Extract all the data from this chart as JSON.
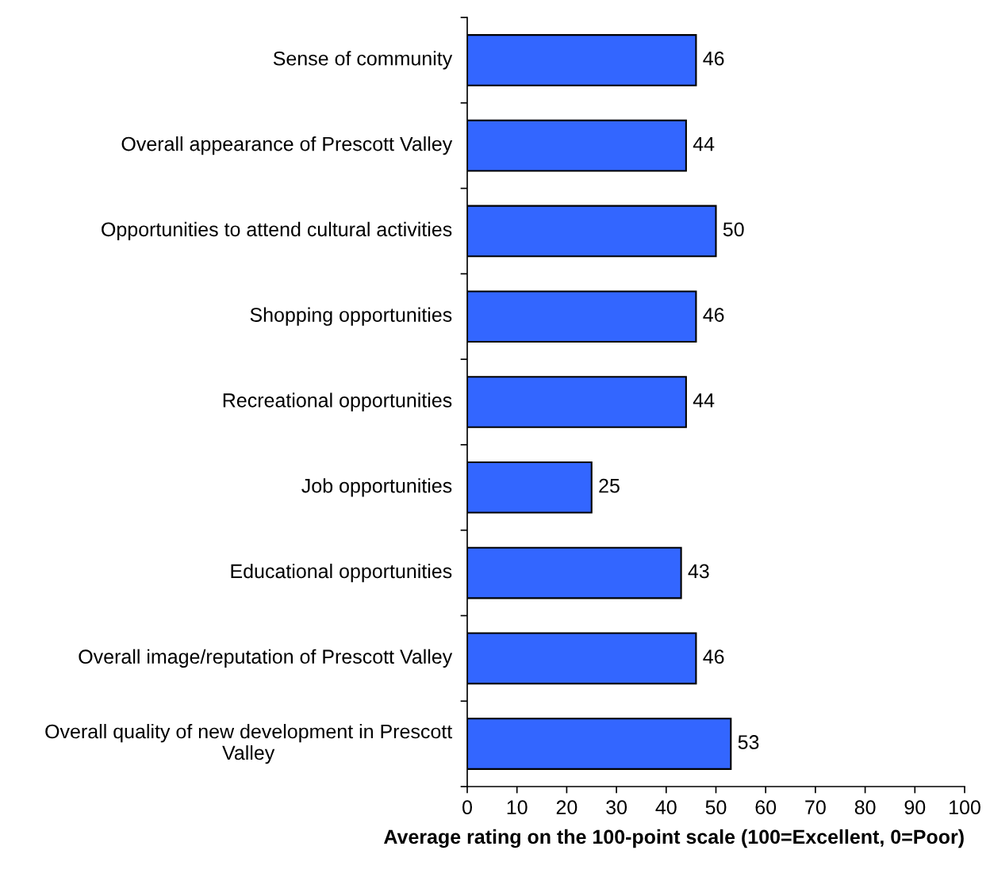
{
  "chart_data": {
    "type": "bar",
    "orientation": "horizontal",
    "categories": [
      "Sense of community",
      "Overall appearance of Prescott Valley",
      "Opportunities to attend cultural activities",
      "Shopping opportunities",
      "Recreational opportunities",
      "Job opportunities",
      "Educational opportunities",
      "Overall image/reputation of Prescott Valley",
      "Overall quality of new development in Prescott Valley"
    ],
    "values": [
      46,
      44,
      50,
      46,
      44,
      25,
      43,
      46,
      53
    ],
    "color": "#3366ff",
    "xlim": [
      0,
      100
    ],
    "xticks": [
      0,
      10,
      20,
      30,
      40,
      50,
      60,
      70,
      80,
      90,
      100
    ],
    "xlabel": "Average rating on the 100-point scale (100=Excellent, 0=Poor)",
    "data_labels": true,
    "grid": false
  }
}
